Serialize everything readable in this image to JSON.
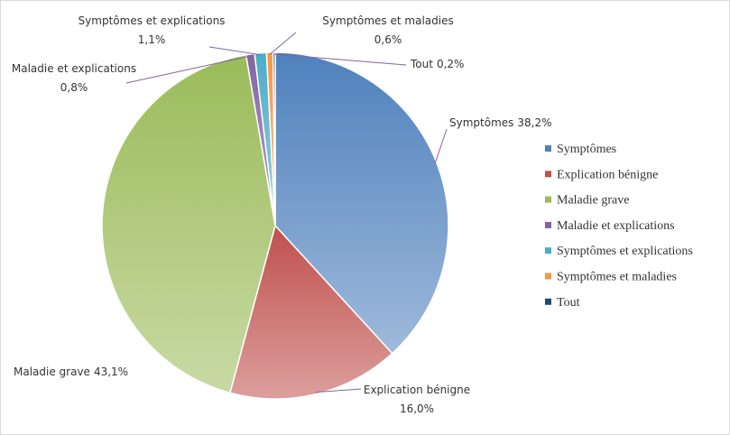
{
  "chart_data": {
    "type": "pie",
    "categories": [
      "Symptômes",
      "Explication bénigne",
      "Maladie grave",
      "Maladie et explications",
      "Symptômes et explications",
      "Symptômes et maladies",
      "Tout"
    ],
    "values": [
      38.2,
      16.0,
      43.1,
      0.8,
      1.1,
      0.6,
      0.2
    ],
    "value_labels": [
      "38,2%",
      "16,0%",
      "43,1%",
      "0,8%",
      "1,1%",
      "0,6%",
      "0,2%"
    ],
    "colors": [
      "#4f81bd",
      "#c0504d",
      "#9bbb59",
      "#8064a2",
      "#4bacc6",
      "#f79646",
      "#1f497d"
    ],
    "legend": "right"
  }
}
